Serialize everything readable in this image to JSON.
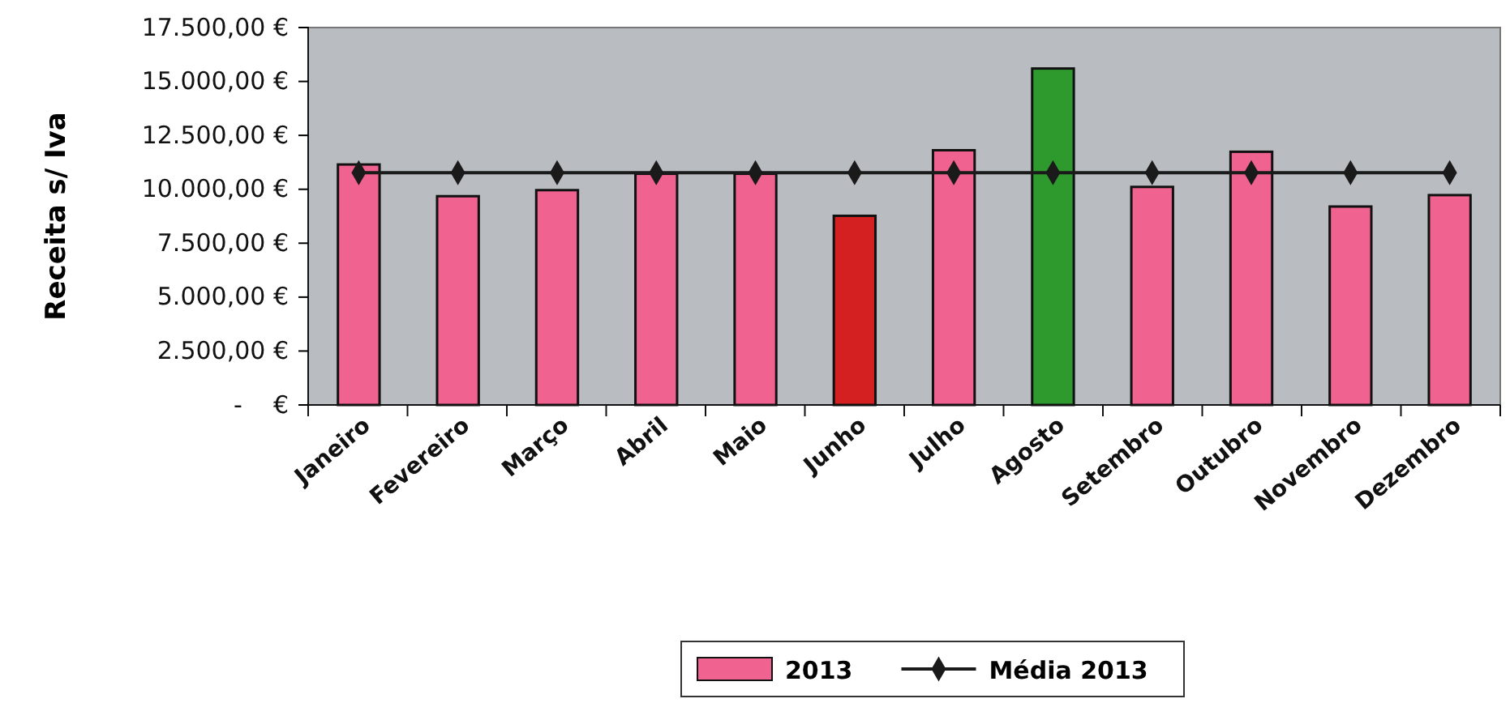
{
  "chart_data": {
    "type": "bar",
    "ylabel": "Receita s/ Iva",
    "categories": [
      "Janeiro",
      "Fevereiro",
      "Março",
      "Abril",
      "Maio",
      "Junho",
      "Julho",
      "Agosto",
      "Setembro",
      "Outubro",
      "Novembro",
      "Dezembro"
    ],
    "series": [
      {
        "name": "2013",
        "color": "#f06290",
        "colors": [
          "#f06290",
          "#f06290",
          "#f06290",
          "#f06290",
          "#f06290",
          "#d42020",
          "#f06290",
          "#2e9a2e",
          "#f06290",
          "#f06290",
          "#f06290",
          "#f06290"
        ],
        "values": [
          11150,
          9680,
          9960,
          10720,
          10720,
          8770,
          11810,
          15600,
          10110,
          11740,
          9200,
          9730
        ]
      },
      {
        "name": "Média 2013",
        "type": "line",
        "color": "#1a1a1a",
        "marker": "diamond",
        "values": [
          10770,
          10770,
          10770,
          10770,
          10770,
          10770,
          10770,
          10770,
          10770,
          10770,
          10770,
          10770
        ]
      }
    ],
    "ylim": [
      0,
      17500
    ],
    "yticks": [
      {
        "value": 0,
        "label": "-    €"
      },
      {
        "value": 2500,
        "label": "2.500,00 €"
      },
      {
        "value": 5000,
        "label": "5.000,00 €"
      },
      {
        "value": 7500,
        "label": "7.500,00 €"
      },
      {
        "value": 10000,
        "label": "10.000,00 €"
      },
      {
        "value": 12500,
        "label": "12.500,00 €"
      },
      {
        "value": 15000,
        "label": "15.000,00 €"
      },
      {
        "value": 17500,
        "label": "17.500,00 €"
      }
    ],
    "grid": false,
    "legend": "bottom"
  }
}
